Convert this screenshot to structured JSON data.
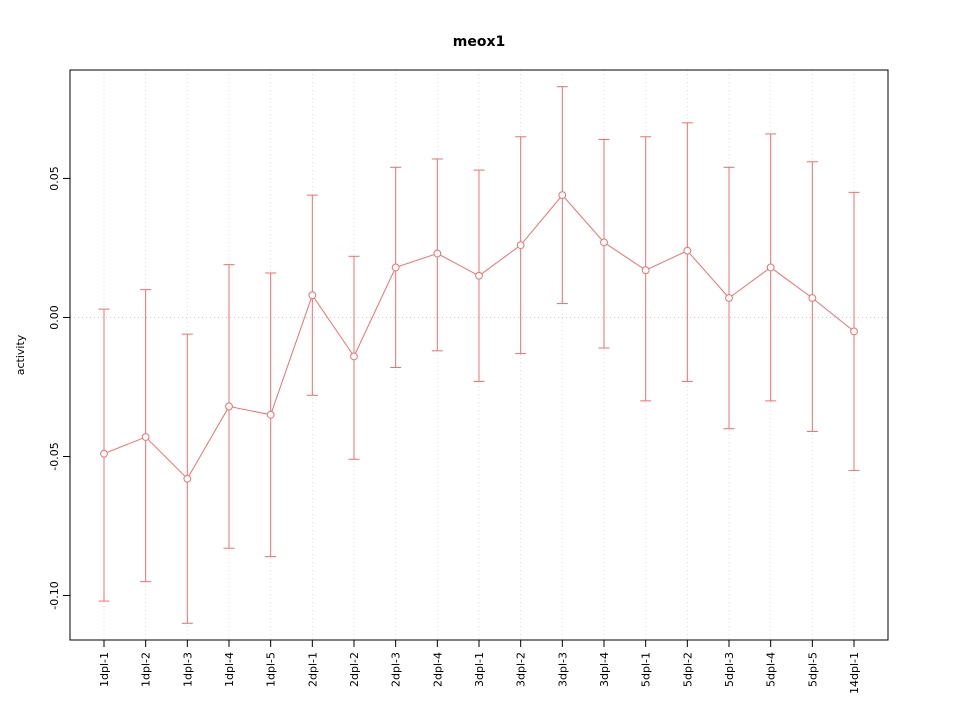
{
  "chart_data": {
    "type": "line",
    "title": "meox1",
    "xlabel": "",
    "ylabel": "activity",
    "categories": [
      "1dpl-1",
      "1dpl-2",
      "1dpl-3",
      "1dpl-4",
      "1dpl-5",
      "2dpl-1",
      "2dpl-2",
      "2dpl-3",
      "2dpl-4",
      "3dpl-1",
      "3dpl-2",
      "3dpl-3",
      "3dpl-4",
      "5dpl-1",
      "5dpl-2",
      "5dpl-3",
      "5dpl-4",
      "5dpl-5",
      "14dpl-1"
    ],
    "series": [
      {
        "name": "activity",
        "values": [
          -0.049,
          -0.043,
          -0.058,
          -0.032,
          -0.035,
          0.008,
          -0.014,
          0.018,
          0.023,
          0.015,
          0.026,
          0.044,
          0.027,
          0.017,
          0.024,
          0.007,
          0.018,
          0.007,
          -0.005
        ],
        "upper": [
          0.003,
          0.01,
          -0.006,
          0.019,
          0.016,
          0.044,
          0.022,
          0.054,
          0.057,
          0.053,
          0.065,
          0.083,
          0.064,
          0.065,
          0.07,
          0.054,
          0.066,
          0.056,
          0.045
        ],
        "lower": [
          -0.102,
          -0.095,
          -0.11,
          -0.083,
          -0.086,
          -0.028,
          -0.051,
          -0.018,
          -0.012,
          -0.023,
          -0.013,
          0.005,
          -0.011,
          -0.03,
          -0.023,
          -0.04,
          -0.03,
          -0.041,
          -0.055
        ]
      }
    ],
    "ylim": [
      -0.116,
      0.089
    ],
    "ytick_values": [
      0.05,
      0.0,
      -0.05,
      -0.1
    ],
    "ytick_labels": [
      "0.05",
      "0.00",
      "-0.05",
      "-0.10"
    ],
    "grid": "vertical-dotted",
    "legend": "none",
    "colors": {
      "series": "#f07070",
      "grid": "#dcdcdc",
      "zero_line": "#f5baba",
      "axis": "#000000",
      "point_fill": "#ffffff",
      "background": "#ffffff"
    }
  }
}
